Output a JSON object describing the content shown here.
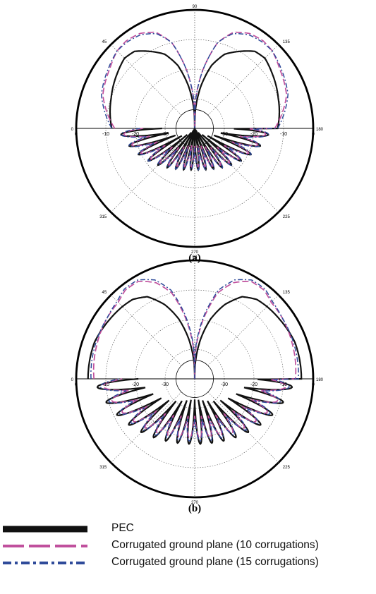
{
  "chart_data": [
    {
      "type": "polar",
      "panel": "(a)",
      "angle_labels": [
        "90",
        "45",
        "135",
        "0",
        "180",
        "315",
        "225",
        "270"
      ],
      "radial_ticks": [
        "0",
        "-10",
        "-20",
        "-30",
        "-30",
        "-20",
        "-10",
        "0"
      ],
      "radial_range_db": [
        -40,
        0
      ],
      "series": [
        {
          "name": "PEC",
          "profile": [
            [
              0,
              -12
            ],
            [
              20,
              -10
            ],
            [
              35,
              -8
            ],
            [
              45,
              -6.5
            ],
            [
              52,
              -7
            ],
            [
              60,
              -10
            ],
            [
              68,
              -13
            ],
            [
              75,
              -18
            ],
            [
              82,
              -26
            ],
            [
              88,
              -34
            ],
            [
              90,
              -40
            ]
          ],
          "lobe_depth": 6,
          "lobe_count": 18
        },
        {
          "name": "Corrugated ground plane (10 corrugations)",
          "profile": [
            [
              0,
              -13
            ],
            [
              20,
              -7
            ],
            [
              35,
              -5
            ],
            [
              45,
              -3
            ],
            [
              52,
              -2.5
            ],
            [
              60,
              -3
            ],
            [
              68,
              -5
            ],
            [
              75,
              -10
            ],
            [
              82,
              -20
            ],
            [
              88,
              -30
            ],
            [
              90,
              -40
            ]
          ],
          "lobe_depth": 3,
          "lobe_count": 18
        },
        {
          "name": "Corrugated ground plane (15 corrugations)",
          "profile": [
            [
              0,
              -12
            ],
            [
              20,
              -6.5
            ],
            [
              35,
              -4.5
            ],
            [
              45,
              -3
            ],
            [
              52,
              -3
            ],
            [
              60,
              -3.5
            ],
            [
              68,
              -5.5
            ],
            [
              75,
              -10
            ],
            [
              82,
              -20
            ],
            [
              88,
              -30
            ],
            [
              90,
              -40
            ]
          ],
          "lobe_depth": 3,
          "lobe_count": 18
        }
      ]
    },
    {
      "type": "polar",
      "panel": "(b)",
      "angle_labels": [
        "90",
        "45",
        "135",
        "0",
        "180",
        "315",
        "225",
        "270"
      ],
      "radial_ticks": [
        "0",
        "-10",
        "-20",
        "-30",
        "-30",
        "-20",
        "-10",
        "0"
      ],
      "radial_range_db": [
        -40,
        0
      ],
      "series": [
        {
          "name": "PEC",
          "profile": [
            [
              0,
              -4
            ],
            [
              20,
              -4
            ],
            [
              35,
              -5
            ],
            [
              45,
              -5.5
            ],
            [
              52,
              -6
            ],
            [
              60,
              -8
            ],
            [
              68,
              -13
            ],
            [
              75,
              -19
            ],
            [
              82,
              -27
            ],
            [
              88,
              -35
            ],
            [
              90,
              -40
            ]
          ],
          "lobe_depth": 6,
          "lobe_count": 18
        },
        {
          "name": "Corrugated ground plane (10 corrugations)",
          "profile": [
            [
              0,
              -6
            ],
            [
              20,
              -5
            ],
            [
              35,
              -4
            ],
            [
              45,
              -3.5
            ],
            [
              52,
              -2
            ],
            [
              60,
              -2
            ],
            [
              68,
              -5
            ],
            [
              75,
              -10
            ],
            [
              82,
              -20
            ],
            [
              88,
              -30
            ],
            [
              90,
              -40
            ]
          ],
          "lobe_depth": 3,
          "lobe_count": 18
        },
        {
          "name": "Corrugated ground plane (15 corrugations)",
          "profile": [
            [
              0,
              -5
            ],
            [
              20,
              -4.5
            ],
            [
              35,
              -4
            ],
            [
              45,
              -3
            ],
            [
              52,
              -1.5
            ],
            [
              60,
              -1.5
            ],
            [
              68,
              -4
            ],
            [
              75,
              -9
            ],
            [
              82,
              -19
            ],
            [
              88,
              -29
            ],
            [
              90,
              -40
            ]
          ],
          "lobe_depth": 3,
          "lobe_count": 18
        }
      ]
    }
  ],
  "legend": [
    {
      "label": "PEC",
      "color": "#111111",
      "style": "solid"
    },
    {
      "label": "Corrugated ground plane (10 corrugations)",
      "color": "#c0509d",
      "style": "dashed"
    },
    {
      "label": "Corrugated ground plane (15 corrugations)",
      "color": "#2f4b9a",
      "style": "dash-dot"
    }
  ]
}
